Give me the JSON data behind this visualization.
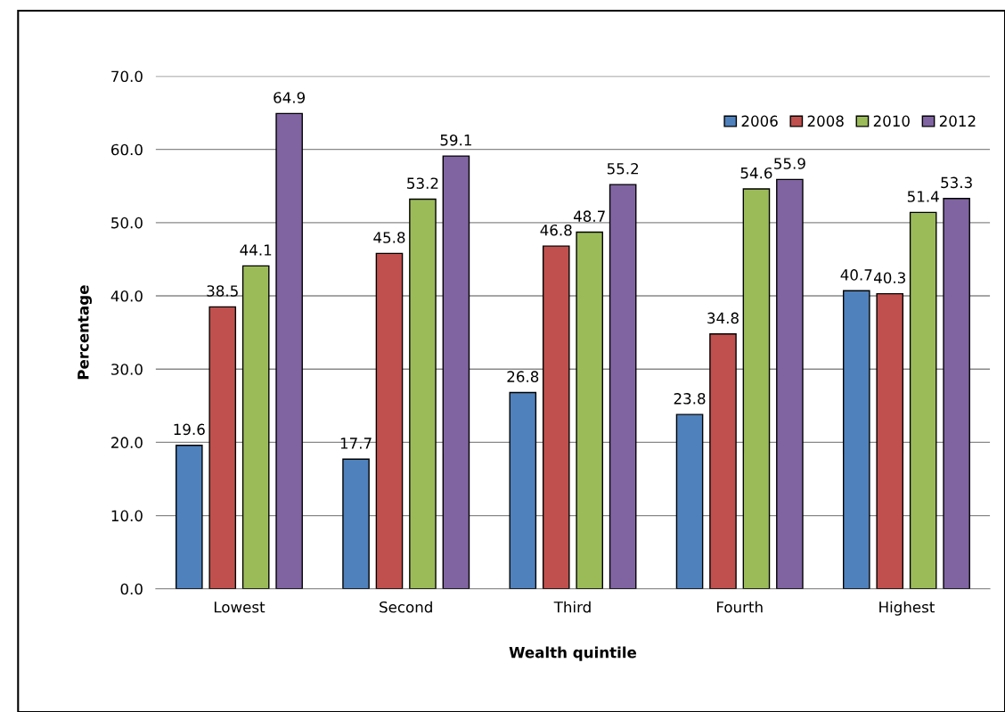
{
  "chart_data": {
    "type": "bar",
    "xlabel": "Wealth quintile",
    "ylabel": "Percentage",
    "categories": [
      "Lowest",
      "Second",
      "Third",
      "Fourth",
      "Highest"
    ],
    "series": [
      {
        "name": "2006",
        "color": "#4f81bd",
        "values": [
          19.6,
          17.7,
          26.8,
          23.8,
          40.7
        ]
      },
      {
        "name": "2008",
        "color": "#c0504d",
        "values": [
          38.5,
          45.8,
          46.8,
          34.8,
          40.3
        ]
      },
      {
        "name": "2010",
        "color": "#9bbb59",
        "values": [
          44.1,
          53.2,
          48.7,
          54.6,
          51.4
        ]
      },
      {
        "name": "2012",
        "color": "#8064a2",
        "values": [
          64.9,
          59.1,
          55.2,
          55.9,
          53.3
        ]
      }
    ],
    "ylim": [
      0,
      70
    ],
    "yticks": [
      {
        "value": 0,
        "label": "0.0"
      },
      {
        "value": 10,
        "label": "10.0"
      },
      {
        "value": 20,
        "label": "20.0"
      },
      {
        "value": 30,
        "label": "30.0"
      },
      {
        "value": 40,
        "label": "40.0"
      },
      {
        "value": 50,
        "label": "50.0"
      },
      {
        "value": 60,
        "label": "60.0"
      },
      {
        "value": 70,
        "label": "70.0"
      }
    ],
    "grid": "y",
    "legend": "top right",
    "data_labels": true
  }
}
